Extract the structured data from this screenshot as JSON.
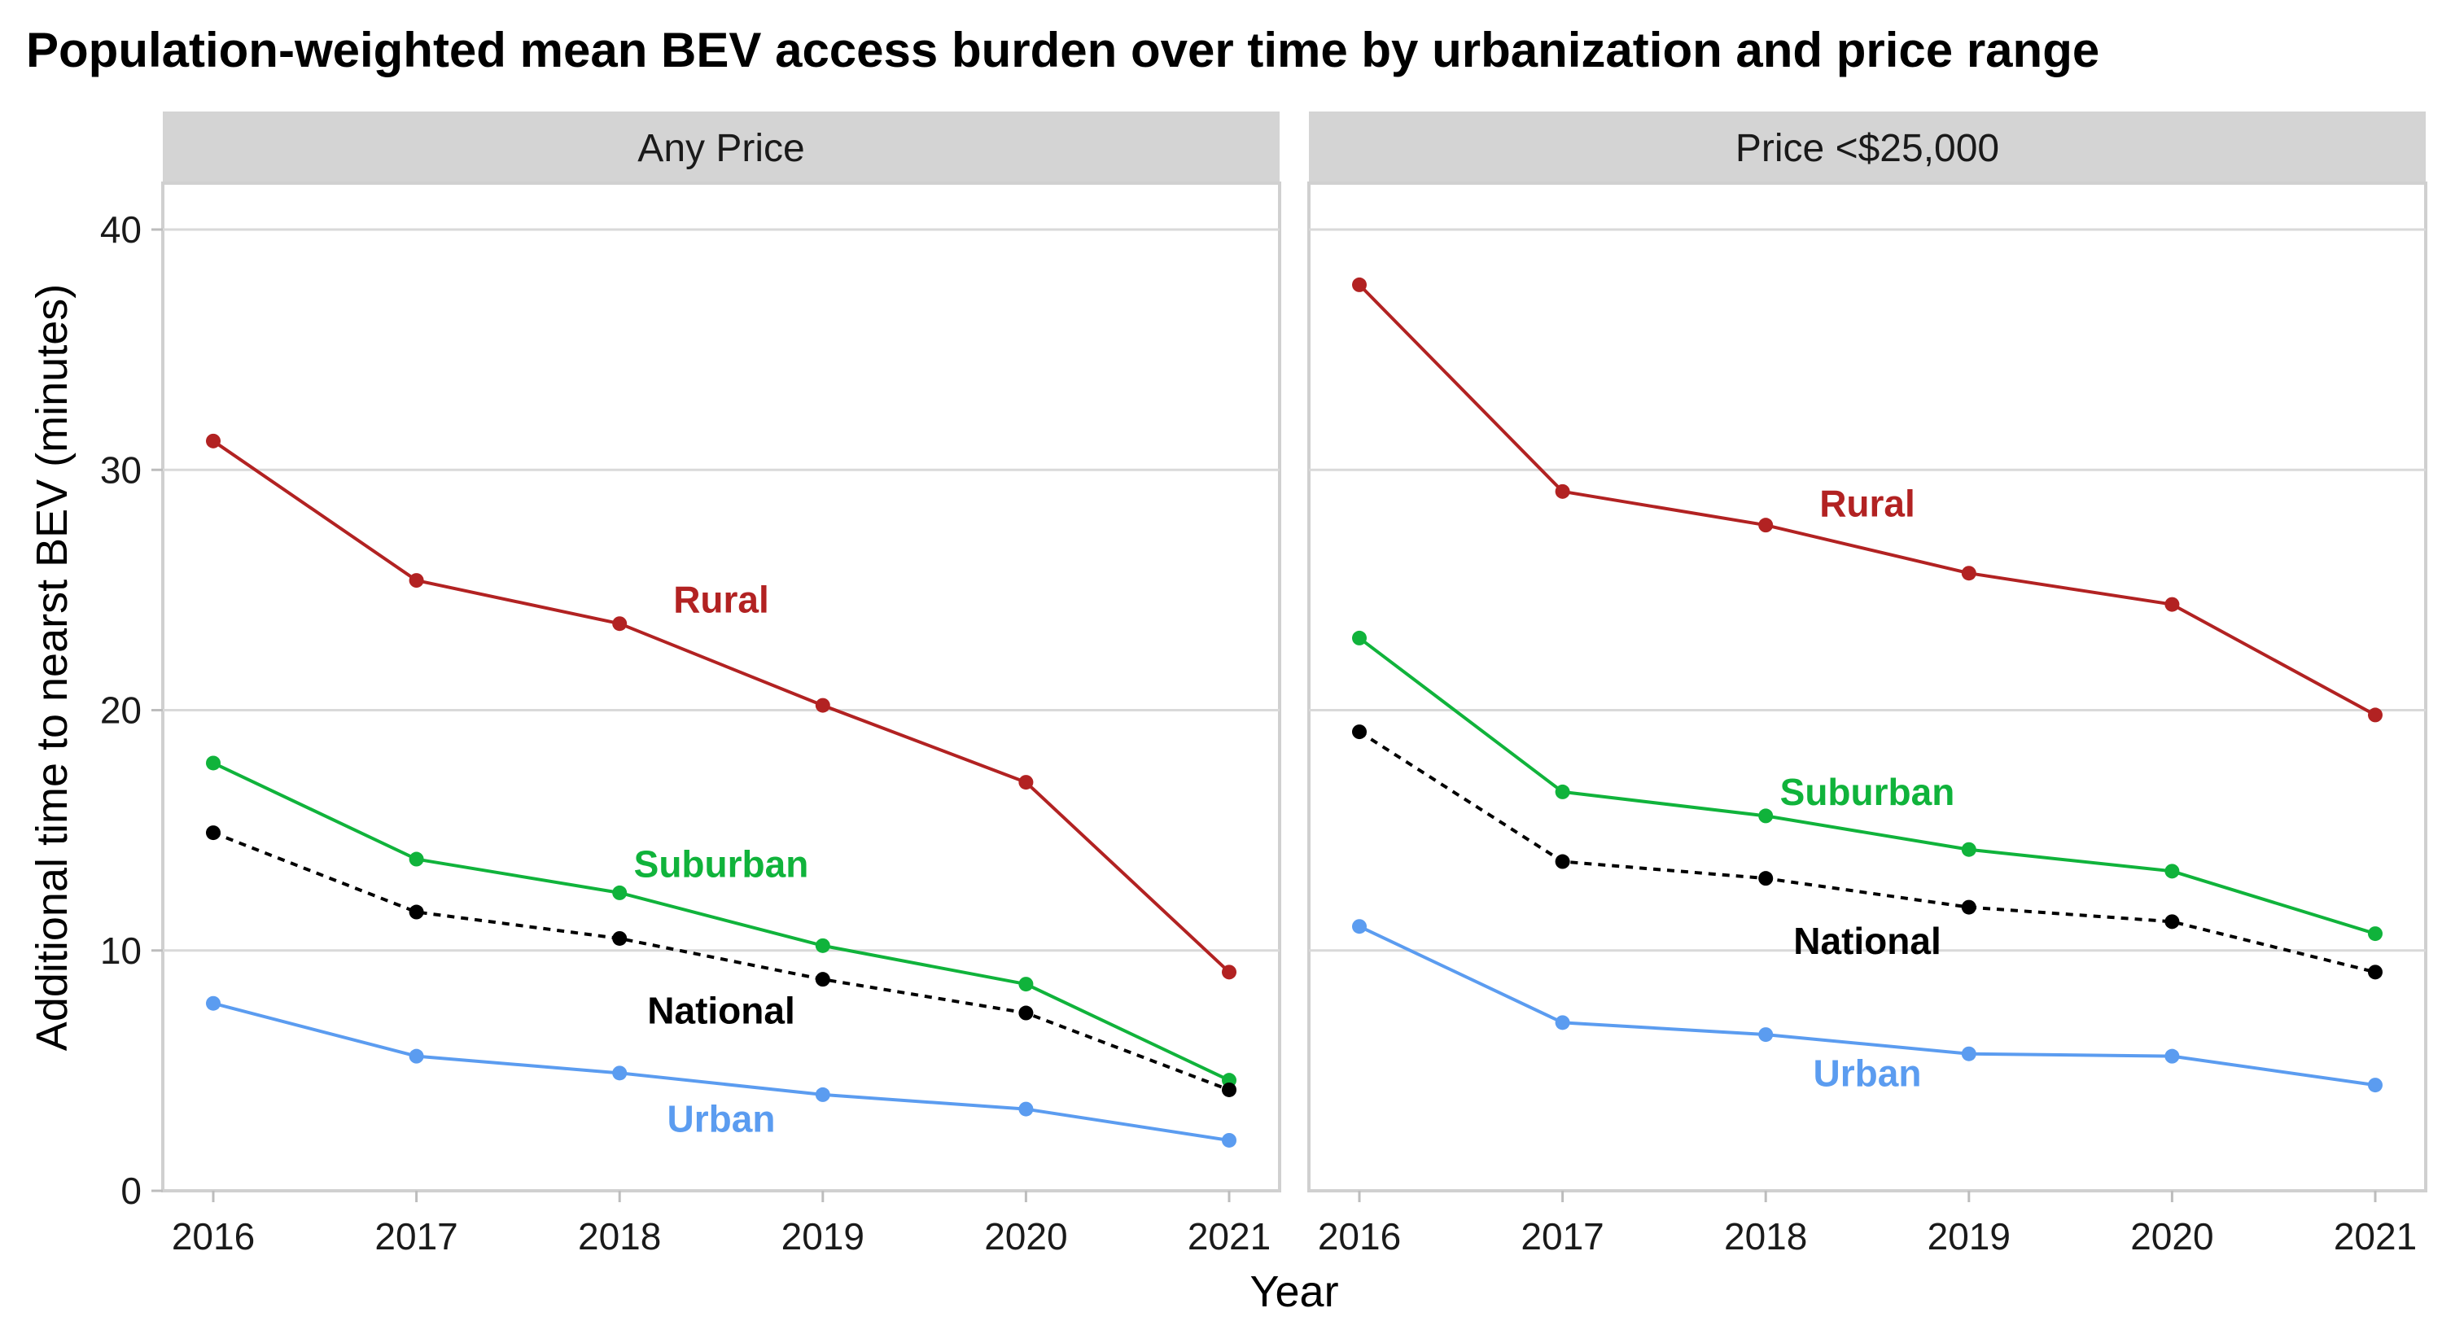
{
  "chart_data": {
    "type": "line",
    "title": "Population-weighted mean BEV access burden over time by urbanization and price range",
    "xlabel": "Year",
    "ylabel": "Additional time to nearst BEV (minutes)",
    "x": [
      2016,
      2017,
      2018,
      2019,
      2020,
      2021
    ],
    "x_ticks": [
      "2016",
      "2017",
      "2018",
      "2019",
      "2020",
      "2021"
    ],
    "ylim": [
      0,
      40
    ],
    "y_ticks": [
      "0",
      "10",
      "20",
      "30",
      "40"
    ],
    "grid": true,
    "legend": "none (direct labels)",
    "panels": [
      {
        "strip": "Any Price",
        "series": [
          {
            "name": "Rural",
            "color": "#b22222",
            "style": "solid",
            "values": [
              31.2,
              25.4,
              23.6,
              20.2,
              17.0,
              9.1
            ]
          },
          {
            "name": "Suburban",
            "color": "#10b33b",
            "style": "solid",
            "values": [
              17.8,
              13.8,
              12.4,
              10.2,
              8.6,
              4.6
            ]
          },
          {
            "name": "National",
            "color": "#000000",
            "style": "dashed",
            "values": [
              14.9,
              11.6,
              10.5,
              8.8,
              7.4,
              4.2
            ]
          },
          {
            "name": "Urban",
            "color": "#5b9cf0",
            "style": "solid",
            "values": [
              7.8,
              5.6,
              4.9,
              4.0,
              3.4,
              2.1
            ]
          }
        ]
      },
      {
        "strip": "Price <$25,000",
        "series": [
          {
            "name": "Rural",
            "color": "#b22222",
            "style": "solid",
            "values": [
              37.7,
              29.1,
              27.7,
              25.7,
              24.4,
              19.8
            ]
          },
          {
            "name": "Suburban",
            "color": "#10b33b",
            "style": "solid",
            "values": [
              23.0,
              16.6,
              15.6,
              14.2,
              13.3,
              10.7
            ]
          },
          {
            "name": "National",
            "color": "#000000",
            "style": "dashed",
            "values": [
              19.1,
              13.7,
              13.0,
              11.8,
              11.2,
              9.1
            ]
          },
          {
            "name": "Urban",
            "color": "#5b9cf0",
            "style": "solid",
            "values": [
              11.0,
              7.0,
              6.5,
              5.7,
              5.6,
              4.4
            ]
          }
        ]
      }
    ],
    "label_positions": [
      {
        "Rural": [
          2018.5,
          24.6
        ],
        "Suburban": [
          2018.5,
          13.6
        ],
        "National": [
          2018.5,
          7.5
        ],
        "Urban": [
          2018.5,
          3.0
        ]
      },
      {
        "Rural": [
          2018.5,
          28.6
        ],
        "Suburban": [
          2018.5,
          16.6
        ],
        "National": [
          2018.5,
          10.4
        ],
        "Urban": [
          2018.5,
          4.9
        ]
      }
    ]
  }
}
